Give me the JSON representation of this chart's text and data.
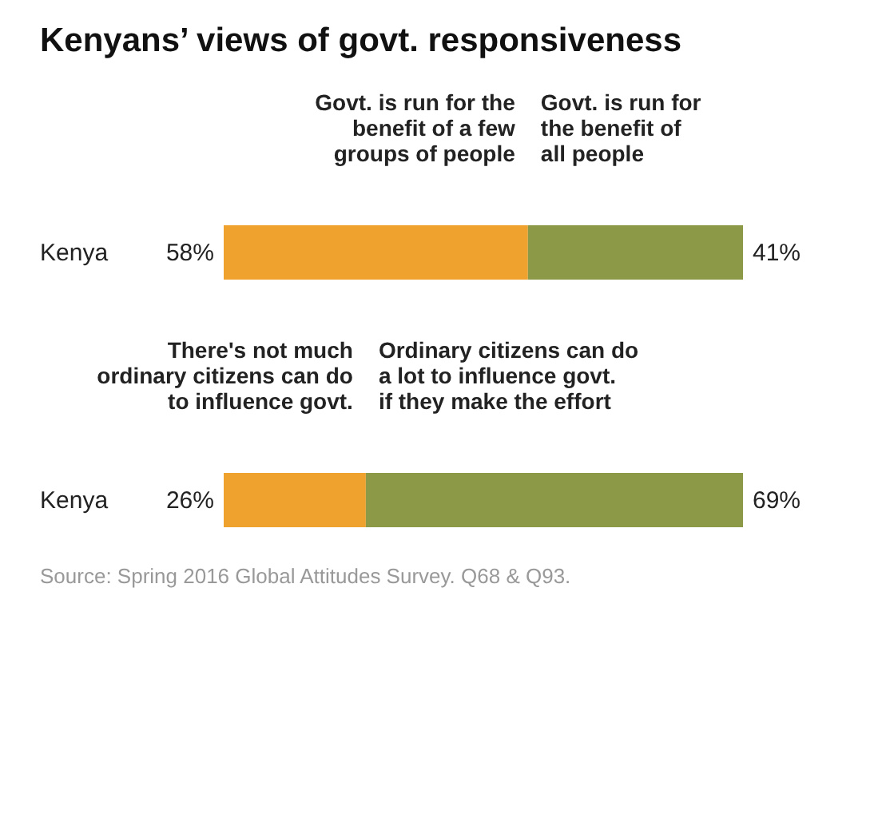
{
  "chart_data": [
    {
      "type": "bar",
      "title": "Kenyans’ views of govt. responsiveness",
      "orientation": "horizontal",
      "stacked": true,
      "categories": [
        "Kenya"
      ],
      "series": [
        {
          "name": "Govt. is run for the\nbenefit of a few\ngroups of people",
          "color": "#f0a22e",
          "values": [
            58
          ],
          "value_labels": [
            "58%"
          ]
        },
        {
          "name": "Govt. is run for\nthe benefit of\nall people",
          "color": "#8c9a48",
          "values": [
            41
          ],
          "value_labels": [
            "41%"
          ]
        }
      ]
    },
    {
      "type": "bar",
      "orientation": "horizontal",
      "stacked": true,
      "categories": [
        "Kenya"
      ],
      "series": [
        {
          "name": "There's not much\nordinary citizens can  do\nto influence govt.",
          "color": "#f0a22e",
          "values": [
            26
          ],
          "value_labels": [
            "26%"
          ]
        },
        {
          "name": "Ordinary citizens can do\na lot to influence govt.\nif they make the effort",
          "color": "#8c9a48",
          "values": [
            69
          ],
          "value_labels": [
            "69%"
          ]
        }
      ],
      "annotations": [
        "Source: Spring 2016 Global Attitudes Survey. Q68 & Q93."
      ]
    }
  ]
}
